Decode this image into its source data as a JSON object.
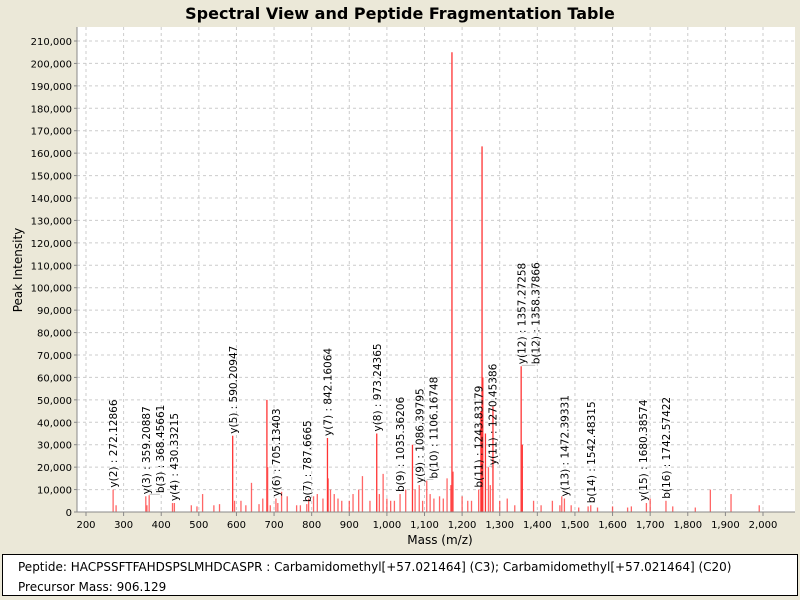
{
  "chart_data": {
    "type": "bar",
    "title": "Spectral View and Peptide Fragmentation Table",
    "xlabel": "Mass (m/z)",
    "ylabel": "Peak Intensity",
    "xlim": [
      175,
      2075
    ],
    "ylim": [
      0,
      215000
    ],
    "grid": true,
    "color": "#ff3333",
    "x_ticks": [
      "200",
      "300",
      "400",
      "500",
      "600",
      "700",
      "800",
      "900",
      "1,000",
      "1,100",
      "1,200",
      "1,300",
      "1,400",
      "1,500",
      "1,600",
      "1,700",
      "1,800",
      "1,900",
      "2,000"
    ],
    "x_tick_values": [
      200,
      300,
      400,
      500,
      600,
      700,
      800,
      900,
      1000,
      1100,
      1200,
      1300,
      1400,
      1500,
      1600,
      1700,
      1800,
      1900,
      2000
    ],
    "y_ticks": [
      "0",
      "10,000",
      "20,000",
      "30,000",
      "40,000",
      "50,000",
      "60,000",
      "70,000",
      "80,000",
      "90,000",
      "100,000",
      "110,000",
      "120,000",
      "130,000",
      "140,000",
      "150,000",
      "160,000",
      "170,000",
      "180,000",
      "190,000",
      "200,000",
      "210,000"
    ],
    "peaks": [
      [
        272.1,
        10000
      ],
      [
        280,
        3000
      ],
      [
        359,
        7000
      ],
      [
        362,
        3000
      ],
      [
        368,
        7500
      ],
      [
        430,
        4000
      ],
      [
        435,
        4000
      ],
      [
        480,
        3000
      ],
      [
        495,
        2500
      ],
      [
        510,
        8000
      ],
      [
        540,
        3000
      ],
      [
        555,
        3500
      ],
      [
        590,
        34000
      ],
      [
        595,
        5000
      ],
      [
        612,
        5000
      ],
      [
        625,
        3000
      ],
      [
        640,
        13000
      ],
      [
        660,
        3500
      ],
      [
        670,
        6000
      ],
      [
        681,
        50000
      ],
      [
        683,
        20000
      ],
      [
        690,
        3000
      ],
      [
        705,
        6000
      ],
      [
        710,
        4000
      ],
      [
        720,
        9000
      ],
      [
        735,
        7000
      ],
      [
        760,
        3000
      ],
      [
        770,
        3000
      ],
      [
        787,
        3500
      ],
      [
        792,
        6000
      ],
      [
        805,
        7000
      ],
      [
        815,
        8000
      ],
      [
        830,
        6000
      ],
      [
        842,
        33000
      ],
      [
        844,
        15000
      ],
      [
        850,
        10000
      ],
      [
        860,
        8000
      ],
      [
        870,
        6000
      ],
      [
        880,
        5000
      ],
      [
        900,
        5000
      ],
      [
        910,
        8000
      ],
      [
        925,
        10000
      ],
      [
        935,
        16000
      ],
      [
        955,
        5000
      ],
      [
        973,
        35000
      ],
      [
        980,
        8000
      ],
      [
        990,
        17000
      ],
      [
        1000,
        6000
      ],
      [
        1010,
        5000
      ],
      [
        1020,
        5000
      ],
      [
        1035,
        8000
      ],
      [
        1050,
        10000
      ],
      [
        1068,
        30000
      ],
      [
        1075,
        10000
      ],
      [
        1086,
        12000
      ],
      [
        1095,
        5000
      ],
      [
        1106,
        14000
      ],
      [
        1115,
        8000
      ],
      [
        1125,
        6000
      ],
      [
        1140,
        7000
      ],
      [
        1150,
        6000
      ],
      [
        1160,
        15000
      ],
      [
        1170,
        12000
      ],
      [
        1173,
        205000
      ],
      [
        1176,
        18000
      ],
      [
        1200,
        7000
      ],
      [
        1215,
        5000
      ],
      [
        1225,
        5000
      ],
      [
        1244,
        10000
      ],
      [
        1250,
        45000
      ],
      [
        1253,
        163000
      ],
      [
        1255,
        60000
      ],
      [
        1262,
        35000
      ],
      [
        1270,
        20000
      ],
      [
        1275,
        12000
      ],
      [
        1282,
        47000
      ],
      [
        1300,
        5000
      ],
      [
        1320,
        6000
      ],
      [
        1340,
        3000
      ],
      [
        1357,
        65000
      ],
      [
        1360,
        30000
      ],
      [
        1390,
        5000
      ],
      [
        1410,
        3000
      ],
      [
        1440,
        5000
      ],
      [
        1460,
        3000
      ],
      [
        1465,
        7000
      ],
      [
        1472,
        6000
      ],
      [
        1490,
        3000
      ],
      [
        1510,
        2000
      ],
      [
        1535,
        2500
      ],
      [
        1542,
        3000
      ],
      [
        1560,
        2000
      ],
      [
        1600,
        2500
      ],
      [
        1640,
        2000
      ],
      [
        1650,
        2500
      ],
      [
        1690,
        4000
      ],
      [
        1700,
        6000
      ],
      [
        1742,
        5000
      ],
      [
        1760,
        2500
      ],
      [
        1820,
        2000
      ],
      [
        1860,
        10000
      ],
      [
        1915,
        8000
      ],
      [
        1990,
        3000
      ]
    ],
    "annotations": [
      {
        "mass": 272.12866,
        "intensity": 10000,
        "text": "y(2) : 272.12866"
      },
      {
        "mass": 359.20887,
        "intensity": 7000,
        "text": "y(3) : 359.20887"
      },
      {
        "mass": 368.45661,
        "intensity": 7500,
        "text": "b(3) : 368.45661"
      },
      {
        "mass": 430.33215,
        "intensity": 4000,
        "text": "y(4) : 430.33215"
      },
      {
        "mass": 590.20947,
        "intensity": 34000,
        "text": "y(5) : 590.20947"
      },
      {
        "mass": 705.13403,
        "intensity": 6000,
        "text": "y(6) : 705.13403"
      },
      {
        "mass": 787.6665,
        "intensity": 3500,
        "text": "b(7) : 787.6665"
      },
      {
        "mass": 842.16064,
        "intensity": 33000,
        "text": "y(7) : 842.16064"
      },
      {
        "mass": 973.24365,
        "intensity": 35000,
        "text": "y(8) : 973.24365"
      },
      {
        "mass": 1035.36206,
        "intensity": 8000,
        "text": "b(9) : 1035.36206"
      },
      {
        "mass": 1086.39795,
        "intensity": 12000,
        "text": "y(9) : 1086.39795"
      },
      {
        "mass": 1106.16748,
        "intensity": 14000,
        "text": "b(10) : 1106.16748"
      },
      {
        "mass": 1243.83179,
        "intensity": 10000,
        "text": "b(11) : 1243.83179"
      },
      {
        "mass": 1270.45386,
        "intensity": 20000,
        "text": "y(11) : 1270.45386"
      },
      {
        "mass": 1357.27258,
        "intensity": 65000,
        "text": "y(12) : 1357.27258"
      },
      {
        "mass": 1358.37866,
        "intensity": 65000,
        "text": "b(12) : 1358.37866"
      },
      {
        "mass": 1472.39331,
        "intensity": 6000,
        "text": "y(13) : 1472.39331"
      },
      {
        "mass": 1542.48315,
        "intensity": 3000,
        "text": "b(14) : 1542.48315"
      },
      {
        "mass": 1680.38574,
        "intensity": 4000,
        "text": "y(15) : 1680.38574"
      },
      {
        "mass": 1742.57422,
        "intensity": 5000,
        "text": "b(16) : 1742.57422"
      }
    ]
  },
  "info": {
    "peptide": "Peptide: HACPSSFTFAHDSPSLMHDCASPR : Carbamidomethyl[+57.021464] (C3); Carbamidomethyl[+57.021464] (C20)",
    "precursor": "Precursor Mass: 906.129"
  }
}
